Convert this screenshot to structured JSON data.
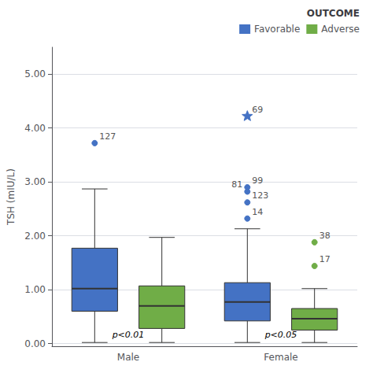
{
  "chart_data": {
    "type": "boxplot",
    "ylabel": "TSH (mIU/L)",
    "ylim": [
      -0.05,
      5.5
    ],
    "yticks": [
      {
        "value": 0,
        "label": "0.00"
      },
      {
        "value": 1,
        "label": "1.00"
      },
      {
        "value": 2,
        "label": "2.00"
      },
      {
        "value": 3,
        "label": "3.00"
      },
      {
        "value": 4,
        "label": "4.00"
      },
      {
        "value": 5,
        "label": "5.00"
      }
    ],
    "grid": true,
    "legend": "upper right",
    "legend_title": "OUTCOME",
    "categories": [
      "Male",
      "Female"
    ],
    "series": [
      {
        "name": "Favorable",
        "color": "#4472c4",
        "boxes": [
          {
            "whisker_low": 0.02,
            "q1": 0.6,
            "median": 1.02,
            "q3": 1.77,
            "whisker_high": 2.87,
            "outliers": [
              {
                "y": 3.72,
                "label": "127",
                "marker": "circle"
              }
            ]
          },
          {
            "whisker_low": 0.02,
            "q1": 0.42,
            "median": 0.77,
            "q3": 1.13,
            "whisker_high": 2.13,
            "outliers": [
              {
                "y": 2.82,
                "label": "81",
                "marker": "circle"
              },
              {
                "y": 2.9,
                "label": "99",
                "marker": "circle"
              },
              {
                "y": 2.62,
                "label": "123",
                "marker": "circle"
              },
              {
                "y": 2.32,
                "label": "14",
                "marker": "circle"
              },
              {
                "y": 4.22,
                "label": "69",
                "marker": "star"
              }
            ]
          }
        ]
      },
      {
        "name": "Adverse",
        "color": "#70ad47",
        "boxes": [
          {
            "whisker_low": 0.02,
            "q1": 0.28,
            "median": 0.7,
            "q3": 1.07,
            "whisker_high": 1.97,
            "outliers": []
          },
          {
            "whisker_low": 0.02,
            "q1": 0.25,
            "median": 0.46,
            "q3": 0.65,
            "whisker_high": 1.02,
            "outliers": [
              {
                "y": 1.88,
                "label": "38",
                "marker": "circle"
              },
              {
                "y": 1.44,
                "label": "17",
                "marker": "circle"
              }
            ]
          }
        ]
      }
    ],
    "annotations": [
      {
        "category": "Male",
        "y": 0.02,
        "text": "p<0.01"
      },
      {
        "category": "Female",
        "y": 0.02,
        "text": "p<0.05"
      }
    ]
  }
}
